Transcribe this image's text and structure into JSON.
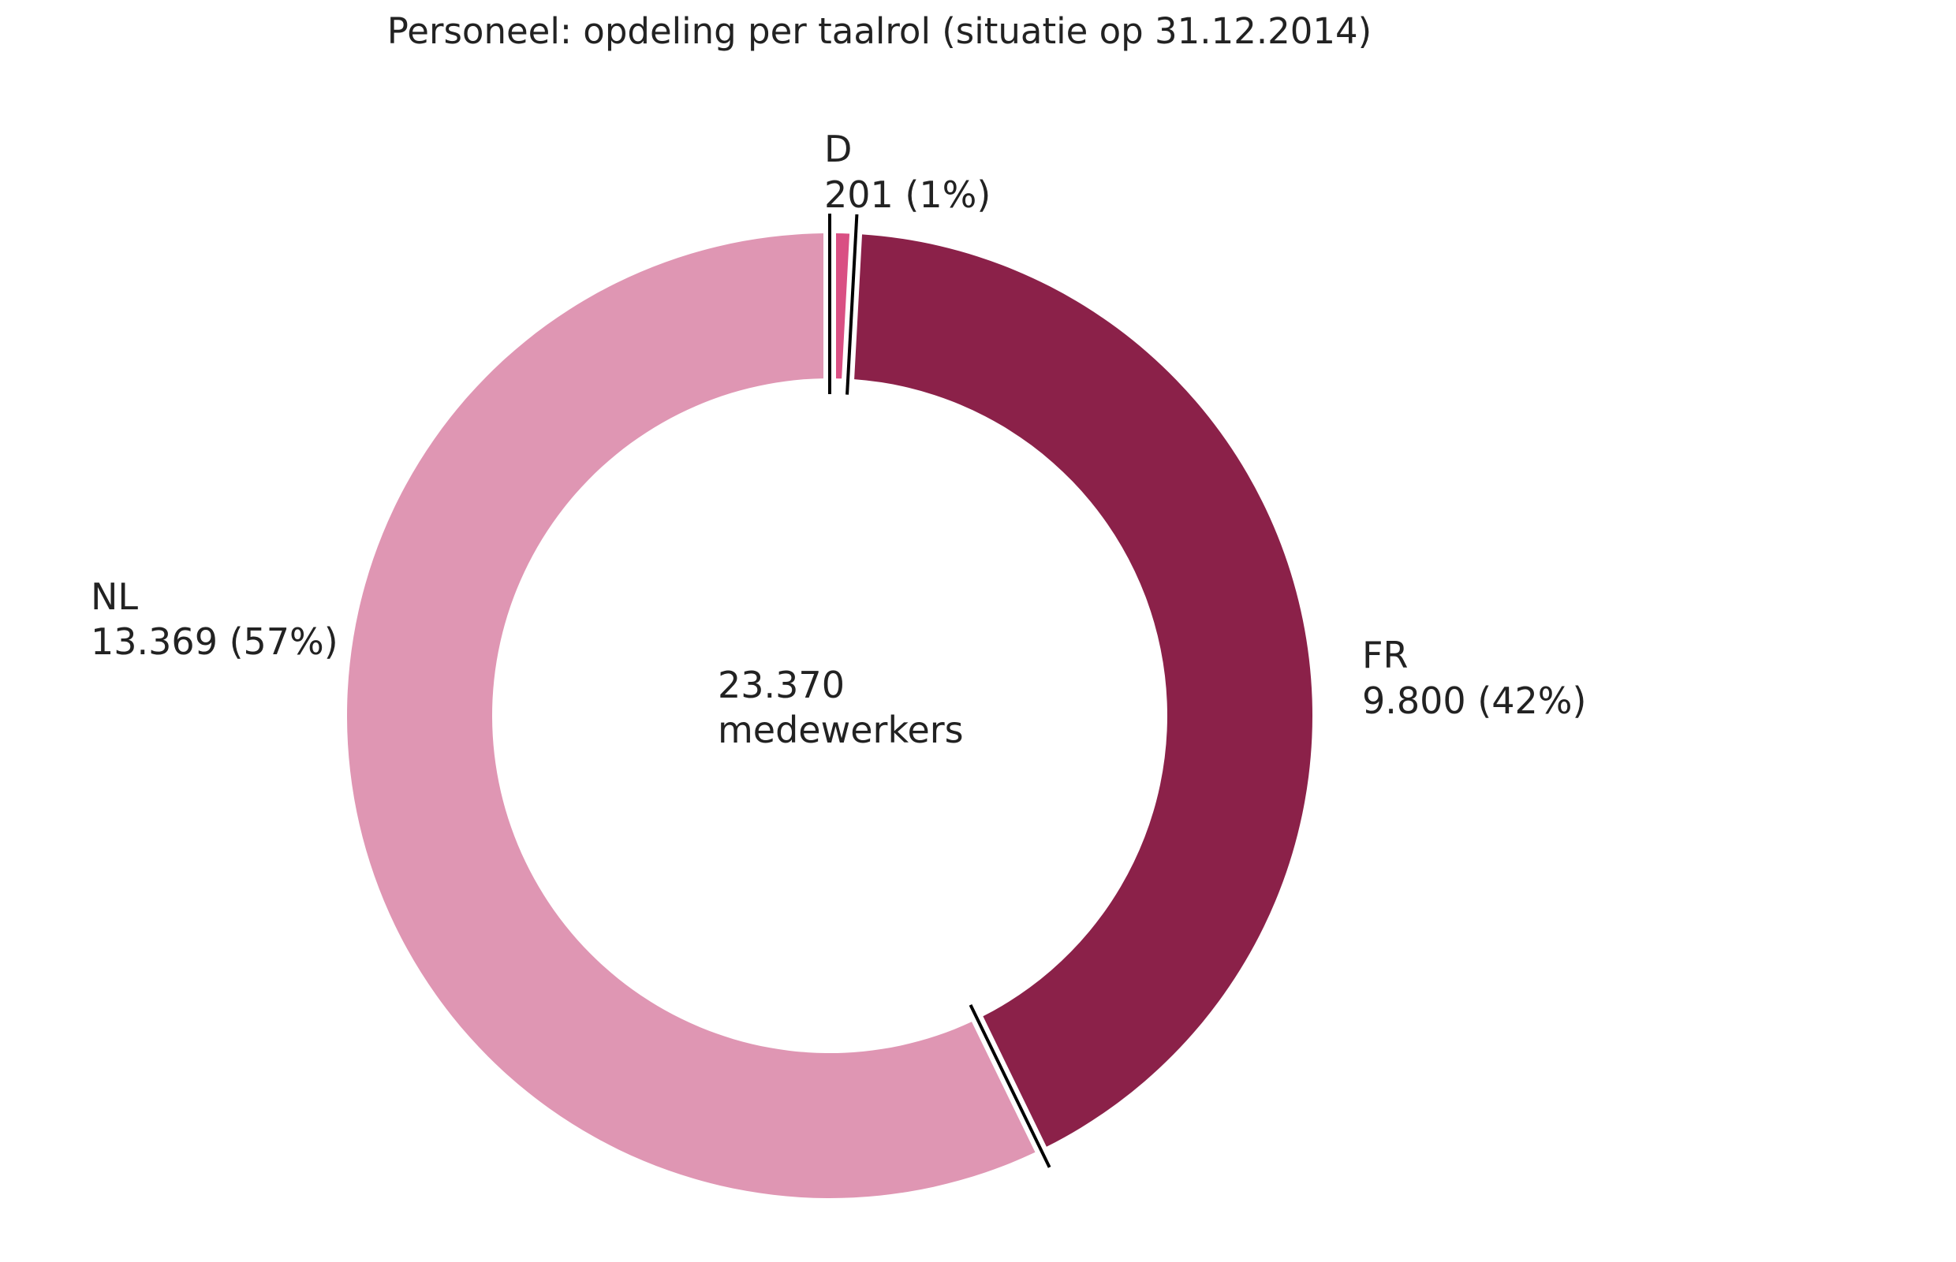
{
  "chart_data": {
    "type": "pie",
    "variant": "donut",
    "title": "Personeel: opdeling per taalrol (situatie op 31.12.2014)",
    "center_label": [
      "23.370",
      "medewerkers"
    ],
    "total": 23370,
    "slices": [
      {
        "name": "NL",
        "value": 13369,
        "label": "13.369 (57%)",
        "color": "#df96b3"
      },
      {
        "name": "D",
        "value": 201,
        "label": "201 (1%)",
        "color": "#d94f83"
      },
      {
        "name": "FR",
        "value": 9800,
        "label": "9.800 (42%)",
        "color": "#8b2149"
      }
    ],
    "slice_order": [
      "D",
      "FR",
      "NL"
    ],
    "direction": "clockwise-from-top",
    "separator_color": "#000000"
  }
}
